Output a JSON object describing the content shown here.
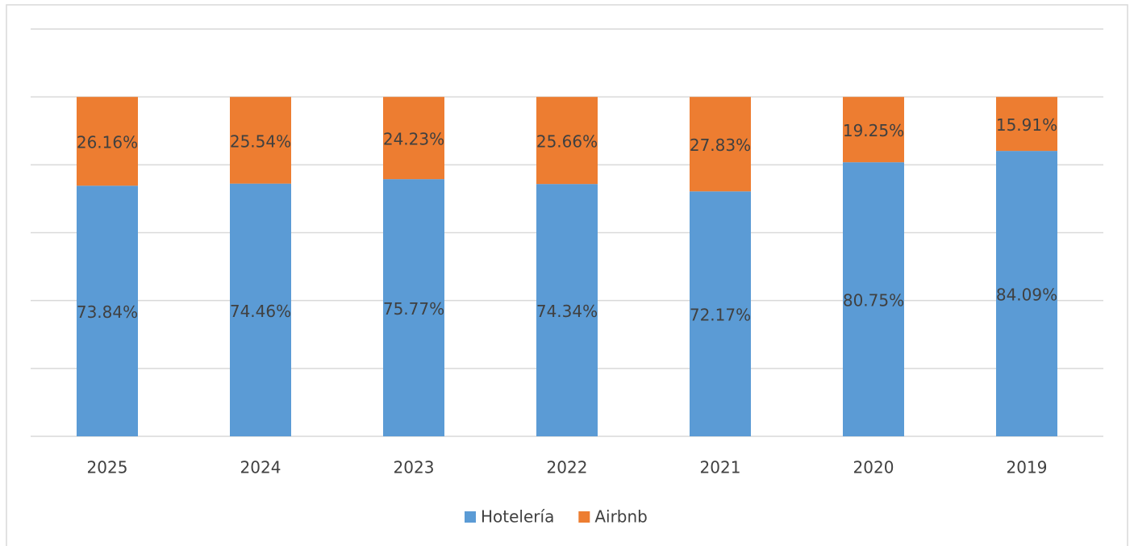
{
  "chart_data": {
    "type": "bar",
    "stacked": true,
    "categories": [
      "2025",
      "2024",
      "2023",
      "2022",
      "2021",
      "2020",
      "2019"
    ],
    "series": [
      {
        "name": "Hotelería",
        "color": "#5b9bd5",
        "values": [
          73.84,
          74.46,
          75.77,
          74.34,
          72.17,
          80.75,
          84.09
        ],
        "value_labels": [
          "73.84%",
          "74.46%",
          "75.77%",
          "74.34%",
          "72.17%",
          "80.75%",
          "84.09%"
        ]
      },
      {
        "name": "Airbnb",
        "color": "#ed7d31",
        "values": [
          26.16,
          25.54,
          24.23,
          25.66,
          27.83,
          19.25,
          15.91
        ],
        "value_labels": [
          "26.16%",
          "25.54%",
          "24.23%",
          "25.66%",
          "27.83%",
          "19.25%",
          "15.91%"
        ]
      }
    ],
    "ylim": [
      0,
      120
    ],
    "yticks": [
      0,
      20,
      40,
      60,
      80,
      100,
      120
    ],
    "grid": true,
    "legend": "bottom"
  }
}
